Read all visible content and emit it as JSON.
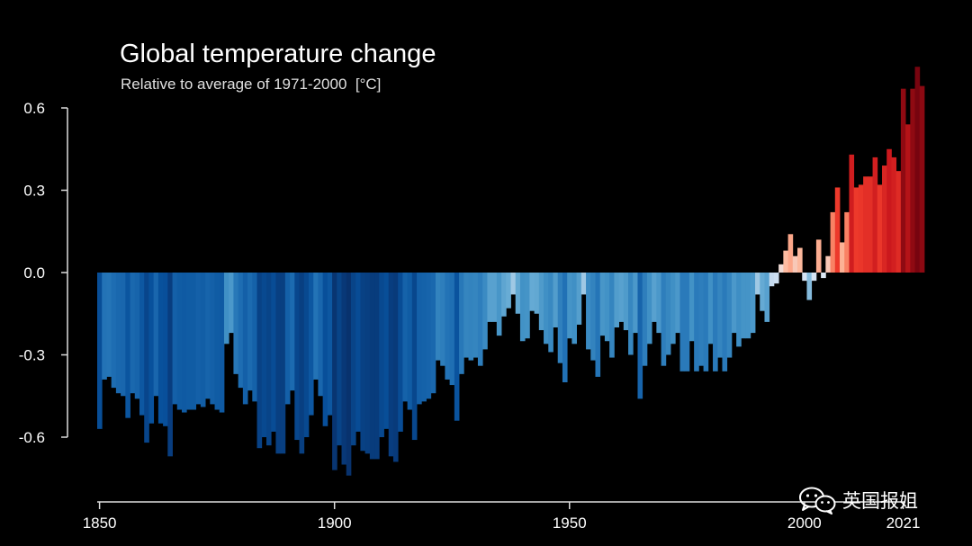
{
  "chart_data": {
    "type": "bar",
    "title": "Global temperature change",
    "subtitle": "Relative to average of 1971-2000  [°C]",
    "x_start": 1850,
    "x_end": 2021,
    "x_ticks": [
      "1850",
      "1900",
      "1950",
      "2000",
      "2021"
    ],
    "y_ticks": [
      "0.6",
      "0.3",
      "0.0",
      "-0.3",
      "-0.6"
    ],
    "y_tick_values": [
      0.6,
      0.3,
      0.0,
      -0.3,
      -0.6
    ],
    "ylim": [
      -0.75,
      0.8
    ],
    "grid": false,
    "values": [
      -0.57,
      -0.39,
      -0.38,
      -0.42,
      -0.44,
      -0.45,
      -0.53,
      -0.44,
      -0.46,
      -0.52,
      -0.62,
      -0.55,
      -0.45,
      -0.55,
      -0.56,
      -0.67,
      -0.48,
      -0.5,
      -0.51,
      -0.5,
      -0.5,
      -0.48,
      -0.49,
      -0.46,
      -0.48,
      -0.5,
      -0.51,
      -0.26,
      -0.22,
      -0.37,
      -0.42,
      -0.48,
      -0.43,
      -0.47,
      -0.64,
      -0.6,
      -0.63,
      -0.58,
      -0.66,
      -0.66,
      -0.48,
      -0.43,
      -0.61,
      -0.66,
      -0.6,
      -0.52,
      -0.39,
      -0.45,
      -0.56,
      -0.52,
      -0.72,
      -0.63,
      -0.7,
      -0.74,
      -0.63,
      -0.58,
      -0.65,
      -0.66,
      -0.68,
      -0.68,
      -0.6,
      -0.57,
      -0.67,
      -0.69,
      -0.58,
      -0.47,
      -0.5,
      -0.61,
      -0.48,
      -0.47,
      -0.46,
      -0.44,
      -0.32,
      -0.34,
      -0.39,
      -0.41,
      -0.54,
      -0.37,
      -0.31,
      -0.32,
      -0.31,
      -0.34,
      -0.28,
      -0.18,
      -0.18,
      -0.23,
      -0.16,
      -0.13,
      -0.08,
      -0.15,
      -0.25,
      -0.24,
      -0.14,
      -0.15,
      -0.21,
      -0.26,
      -0.29,
      -0.2,
      -0.33,
      -0.4,
      -0.24,
      -0.26,
      -0.19,
      -0.08,
      -0.28,
      -0.32,
      -0.38,
      -0.23,
      -0.25,
      -0.31,
      -0.2,
      -0.18,
      -0.21,
      -0.3,
      -0.22,
      -0.46,
      -0.34,
      -0.26,
      -0.18,
      -0.22,
      -0.34,
      -0.3,
      -0.26,
      -0.22,
      -0.36,
      -0.36,
      -0.25,
      -0.36,
      -0.34,
      -0.36,
      -0.26,
      -0.36,
      -0.31,
      -0.36,
      -0.31,
      -0.22,
      -0.27,
      -0.24,
      -0.24,
      -0.22,
      -0.08,
      -0.14,
      -0.18,
      -0.05,
      -0.04,
      0.03,
      0.08,
      0.14,
      0.06,
      0.09,
      -0.03,
      -0.1,
      -0.03,
      0.12,
      -0.02,
      0.06,
      0.22,
      0.31,
      0.11,
      0.22,
      0.43,
      0.31,
      0.32,
      0.35,
      0.35,
      0.42,
      0.32,
      0.39,
      0.45,
      0.42,
      0.37,
      0.67,
      0.54,
      0.67,
      0.75,
      0.68
    ]
  },
  "watermark": {
    "icon": "wechat-icon",
    "text": "英国报姐"
  }
}
